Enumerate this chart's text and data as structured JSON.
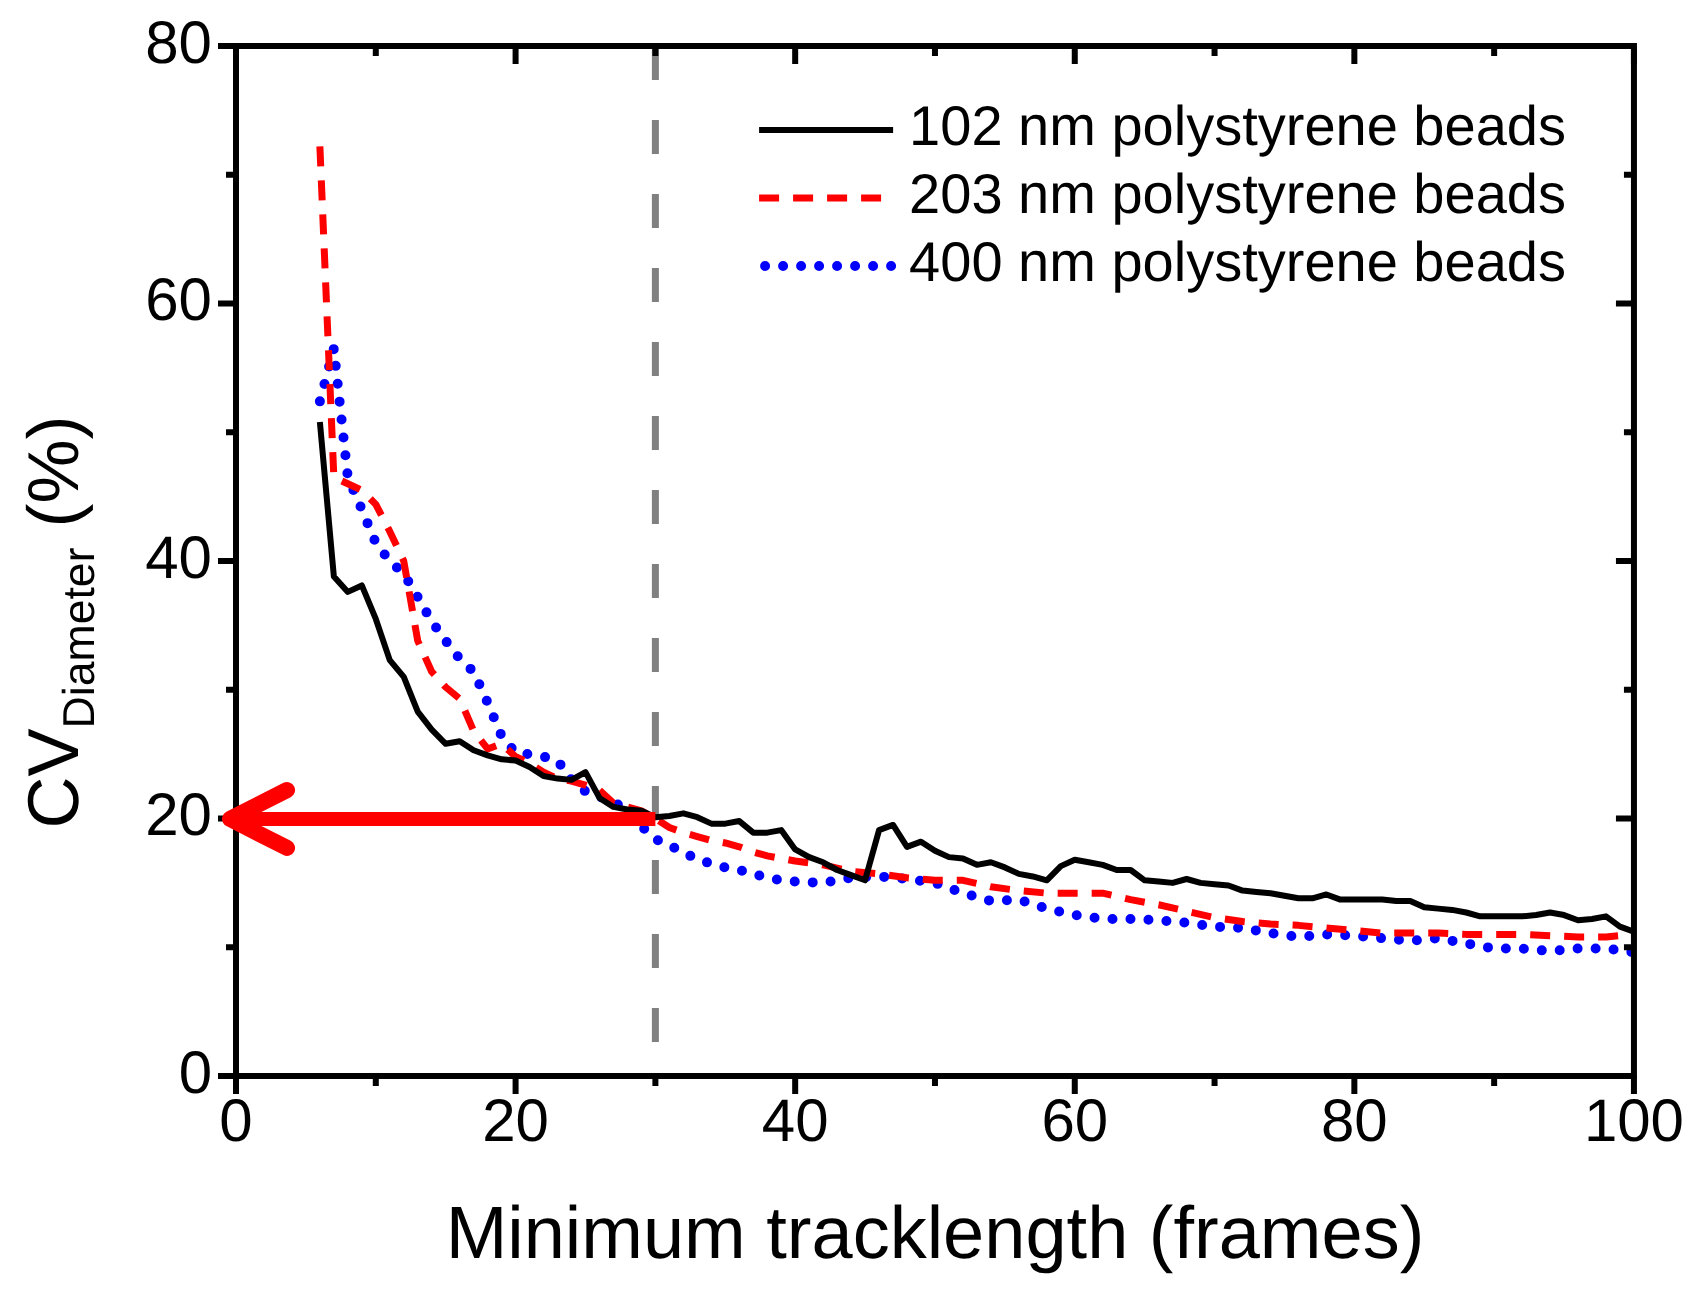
{
  "chart_data": {
    "type": "line",
    "xlabel": "Minimum tracklength (frames)",
    "ylabel": "CV$_{Diameter}$ (%)",
    "xlim": [
      0,
      100
    ],
    "ylim": [
      0,
      80
    ],
    "xticks": [
      0,
      {
        "value": 10,
        "label": null
      },
      20,
      {
        "value": 30,
        "label": null
      },
      40,
      {
        "value": 50,
        "label": null
      },
      60,
      {
        "value": 70,
        "label": null
      },
      80,
      {
        "value": 90,
        "label": null
      },
      100
    ],
    "yticks": [
      0,
      {
        "value": 10,
        "label": null
      },
      20,
      {
        "value": 30,
        "label": null
      },
      40,
      {
        "value": 50,
        "label": null
      },
      60,
      {
        "value": 70,
        "label": null
      },
      80
    ],
    "legend": "top right",
    "ref_lines": [
      {
        "axis": "x",
        "value": 30,
        "color": "#808080",
        "line_style": "dashed"
      }
    ],
    "series": [
      {
        "name": "102 nm polystyrene beads",
        "color": "#000000",
        "line_style": "solid",
        "x": [
          6,
          7,
          8,
          9,
          10,
          11,
          12,
          13,
          14,
          15,
          16,
          17,
          18,
          19,
          20,
          21,
          22,
          23,
          24,
          25,
          26,
          27,
          28,
          29,
          30,
          31,
          32,
          33,
          34,
          35,
          36,
          37,
          38,
          39,
          40,
          41,
          42,
          43,
          44,
          45,
          46,
          47,
          48,
          49,
          50,
          51,
          52,
          53,
          54,
          55,
          56,
          57,
          58,
          59,
          60,
          61,
          62,
          63,
          64,
          65,
          66,
          67,
          68,
          69,
          70,
          71,
          72,
          73,
          74,
          75,
          76,
          77,
          78,
          79,
          80,
          81,
          82,
          83,
          84,
          85,
          86,
          87,
          88,
          89,
          90,
          91,
          92,
          93,
          94,
          95,
          96,
          97,
          98,
          99,
          100
        ],
        "values": [
          50.8,
          38.8,
          37.6,
          38.1,
          35.5,
          32.3,
          31,
          28.3,
          26.9,
          25.8,
          26,
          25.3,
          24.9,
          24.6,
          24.5,
          24,
          23.3,
          23.1,
          23,
          23.6,
          21.6,
          20.9,
          20.7,
          20.6,
          20.1,
          20.2,
          20.4,
          20.1,
          19.6,
          19.6,
          19.8,
          18.9,
          18.9,
          19.1,
          17.6,
          17,
          16.6,
          16,
          15.6,
          15.2,
          19.1,
          19.5,
          17.8,
          18.2,
          17.5,
          17,
          16.9,
          16.4,
          16.6,
          16.2,
          15.7,
          15.5,
          15.2,
          16.3,
          16.8,
          16.6,
          16.4,
          16,
          16,
          15.2,
          15.1,
          15,
          15.3,
          15,
          14.9,
          14.8,
          14.4,
          14.3,
          14.2,
          14,
          13.8,
          13.8,
          14.1,
          13.7,
          13.7,
          13.7,
          13.7,
          13.6,
          13.6,
          13.1,
          13,
          12.9,
          12.7,
          12.4,
          12.4,
          12.4,
          12.4,
          12.5,
          12.7,
          12.5,
          12.1,
          12.2,
          12.4,
          11.6,
          11.2
        ]
      },
      {
        "name": "203 nm polystyrene beads",
        "color": "#ff0000",
        "line_style": "dashed",
        "x": [
          6,
          7,
          8,
          9,
          10,
          11,
          12,
          13,
          14,
          15,
          16,
          17,
          18,
          19,
          20,
          21,
          22,
          23,
          24,
          25,
          26,
          27,
          28,
          29,
          30,
          31,
          32,
          33,
          34,
          35,
          36,
          37,
          38,
          39,
          40,
          42,
          44,
          46,
          48,
          50,
          52,
          54,
          56,
          58,
          60,
          62,
          64,
          66,
          68,
          70,
          72,
          74,
          76,
          78,
          80,
          82,
          84,
          86,
          88,
          90,
          92,
          94,
          96,
          98,
          99,
          100
        ],
        "values": [
          72.2,
          46.5,
          46,
          45.5,
          44.4,
          42.3,
          40,
          33.8,
          31.4,
          30.2,
          29.3,
          26.8,
          25.4,
          25.8,
          24.8,
          24.3,
          23.6,
          23.1,
          22.9,
          22.6,
          22.2,
          21.2,
          20.9,
          20.6,
          20,
          19.3,
          18.9,
          18.6,
          18.3,
          18.1,
          17.8,
          17.4,
          17.1,
          16.9,
          16.7,
          16.4,
          15.9,
          15.7,
          15.4,
          15.2,
          15.2,
          14.7,
          14.4,
          14.2,
          14.2,
          14.2,
          13.7,
          13.3,
          12.8,
          12.3,
          12,
          11.8,
          11.7,
          11.5,
          11.3,
          11.1,
          11.1,
          11.1,
          11,
          11,
          11,
          10.9,
          10.8,
          10.8,
          10.9,
          11.2
        ]
      },
      {
        "name": "400 nm polystyrene beads",
        "color": "#0000ff",
        "line_style": "dotted",
        "x": [
          6,
          7,
          8,
          9,
          10,
          11,
          12,
          13,
          14,
          15,
          16,
          17,
          18,
          19,
          20,
          21,
          22,
          23,
          24,
          25,
          26,
          27,
          28,
          29,
          30,
          31,
          32,
          33,
          34,
          35,
          36,
          37,
          38,
          39,
          40,
          42,
          44,
          46,
          48,
          50,
          52,
          54,
          56,
          58,
          60,
          62,
          64,
          66,
          68,
          70,
          72,
          74,
          76,
          78,
          80,
          82,
          84,
          86,
          88,
          90,
          92,
          94,
          96,
          98,
          100
        ],
        "values": [
          52.4,
          56.5,
          46.5,
          44,
          41.4,
          40,
          39,
          37.2,
          35.3,
          33.8,
          32.4,
          31.4,
          29,
          26.4,
          25.1,
          25,
          24.8,
          24.5,
          23,
          22.1,
          21.7,
          21.3,
          20.6,
          19.4,
          18.4,
          17.9,
          17.4,
          16.8,
          16.5,
          16.2,
          16,
          15.7,
          15.4,
          15.2,
          15.1,
          15,
          15.4,
          15.5,
          15.3,
          15,
          14.2,
          13.6,
          13.7,
          13,
          12.5,
          12.2,
          12.2,
          12.1,
          11.9,
          11.6,
          11.5,
          11.1,
          10.8,
          11,
          10.9,
          10.7,
          10.5,
          10.7,
          10.3,
          9.9,
          9.9,
          9.7,
          9.9,
          9.9,
          9.6
        ]
      }
    ]
  }
}
